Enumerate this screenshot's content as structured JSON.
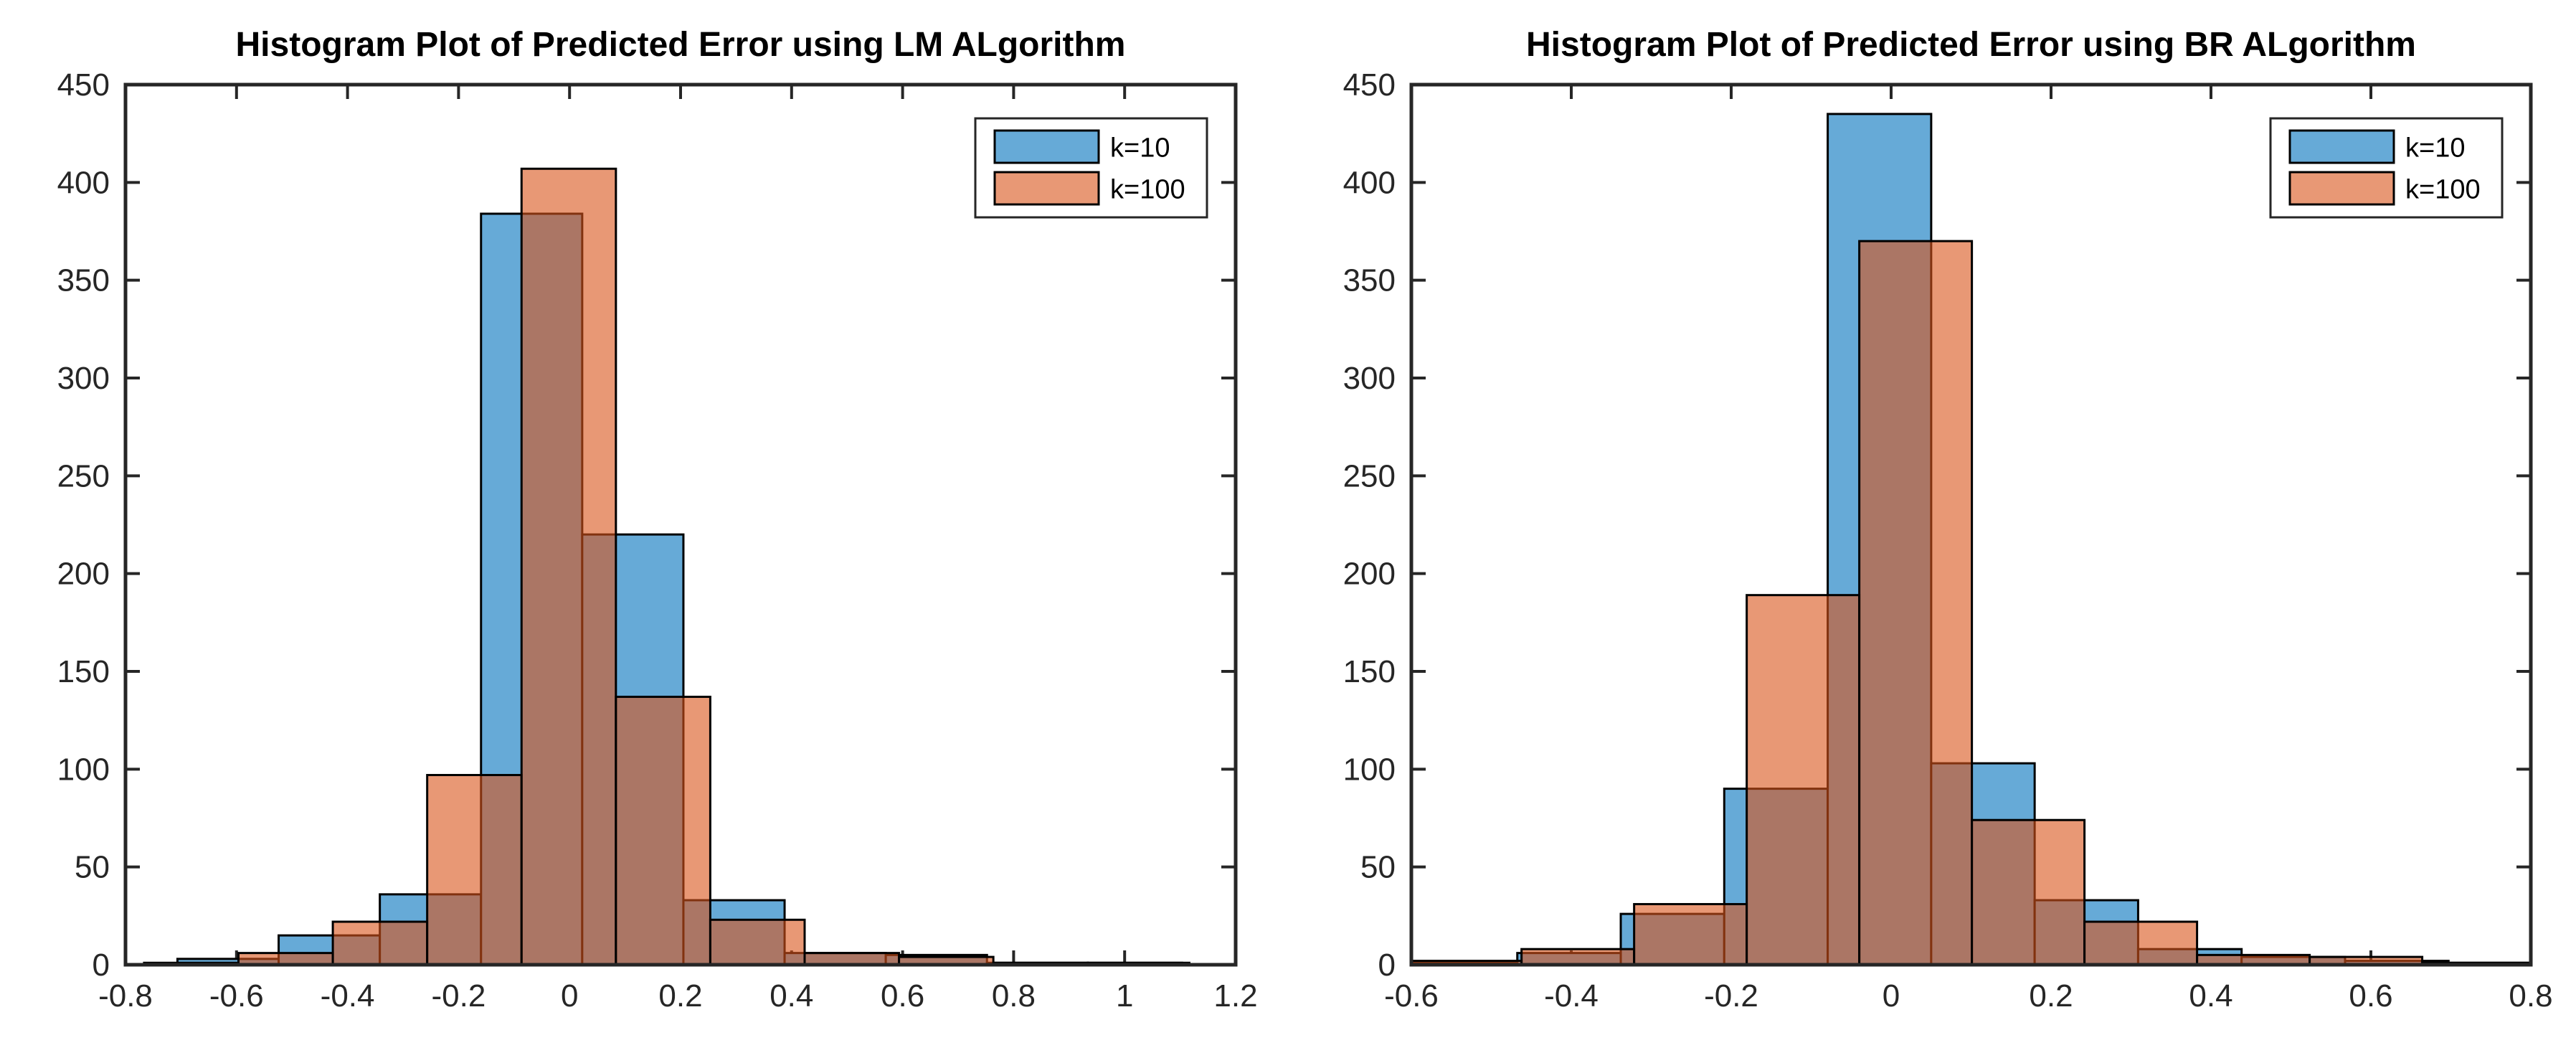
{
  "figure": {
    "background": "#ffffff",
    "axis_color": "#262626"
  },
  "chart_data": [
    {
      "id": "lm",
      "type": "histogram-overlay",
      "title": "Histogram Plot of Predicted Error using LM ALgorithm",
      "xlabel": "",
      "ylabel": "",
      "xlim": [
        -0.8,
        1.2
      ],
      "ylim": [
        0,
        450
      ],
      "grid": false,
      "legend_position": "top-right-inside",
      "xticks": [
        -0.8,
        -0.6,
        -0.4,
        -0.2,
        0,
        0.2,
        0.4,
        0.6,
        0.8,
        1,
        1.2
      ],
      "xtick_labels": [
        "-0.8",
        "-0.6",
        "-0.4",
        "-0.2",
        "0",
        "0.2",
        "0.4",
        "0.6",
        "0.8",
        "1",
        "1.2"
      ],
      "yticks": [
        0,
        50,
        100,
        150,
        200,
        250,
        300,
        350,
        400,
        450
      ],
      "ytick_labels": [
        "0",
        "50",
        "100",
        "150",
        "200",
        "250",
        "300",
        "350",
        "400",
        "450"
      ],
      "series": [
        {
          "name": "k=10",
          "fill": "#66AAD7",
          "fill_opacity": 1,
          "edge": "#000000",
          "bin_edges": [
            -0.7064,
            -0.5241,
            -0.3418,
            -0.1595,
            0.0228,
            0.2051,
            0.3874,
            0.5697,
            0.752,
            0.9343,
            1.1166
          ],
          "counts": [
            3,
            15,
            36,
            384,
            220,
            33,
            6,
            5,
            1,
            1
          ]
        },
        {
          "name": "k=100",
          "fill": "#D95319",
          "fill_opacity": 0.6,
          "edge": "#000000",
          "bin_edges": [
            -0.7665,
            -0.5965,
            -0.4265,
            -0.2565,
            -0.0865,
            0.0835,
            0.2535,
            0.4235,
            0.5935,
            0.7635,
            0.9335,
            1.1035
          ],
          "counts": [
            1,
            6,
            22,
            97,
            407,
            137,
            23,
            6,
            4,
            1,
            1
          ]
        }
      ]
    },
    {
      "id": "br",
      "type": "histogram-overlay",
      "title": "Histogram Plot of Predicted Error using BR ALgorithm",
      "xlabel": "",
      "ylabel": "",
      "xlim": [
        -0.6,
        0.8
      ],
      "ylim": [
        0,
        450
      ],
      "grid": false,
      "legend_position": "top-right-inside",
      "xticks": [
        -0.6,
        -0.4,
        -0.2,
        0,
        0.2,
        0.4,
        0.6,
        0.8
      ],
      "xtick_labels": [
        "-0.6",
        "-0.4",
        "-0.2",
        "0",
        "0.2",
        "0.4",
        "0.6",
        "0.8"
      ],
      "yticks": [
        0,
        50,
        100,
        150,
        200,
        250,
        300,
        350,
        400,
        450
      ],
      "ytick_labels": [
        "0",
        "50",
        "100",
        "150",
        "200",
        "250",
        "300",
        "350",
        "400",
        "450"
      ],
      "series": [
        {
          "name": "k=10",
          "fill": "#66AAD7",
          "fill_opacity": 1,
          "edge": "#000000",
          "bin_edges": [
            -0.5969,
            -0.4675,
            -0.3381,
            -0.2087,
            -0.0793,
            0.0501,
            0.1795,
            0.3089,
            0.4383,
            0.5677,
            0.6971,
            0.8265
          ],
          "counts": [
            1,
            6,
            26,
            90,
            435,
            103,
            33,
            8,
            4,
            2,
            1
          ]
        },
        {
          "name": "k=100",
          "fill": "#D95319",
          "fill_opacity": 0.6,
          "edge": "#000000",
          "bin_edges": [
            -0.603,
            -0.4622,
            -0.3214,
            -0.1806,
            -0.0398,
            0.101,
            0.2418,
            0.3826,
            0.5234,
            0.6642,
            0.805
          ],
          "counts": [
            2,
            8,
            31,
            189,
            370,
            74,
            22,
            5,
            4,
            1
          ]
        }
      ]
    }
  ]
}
